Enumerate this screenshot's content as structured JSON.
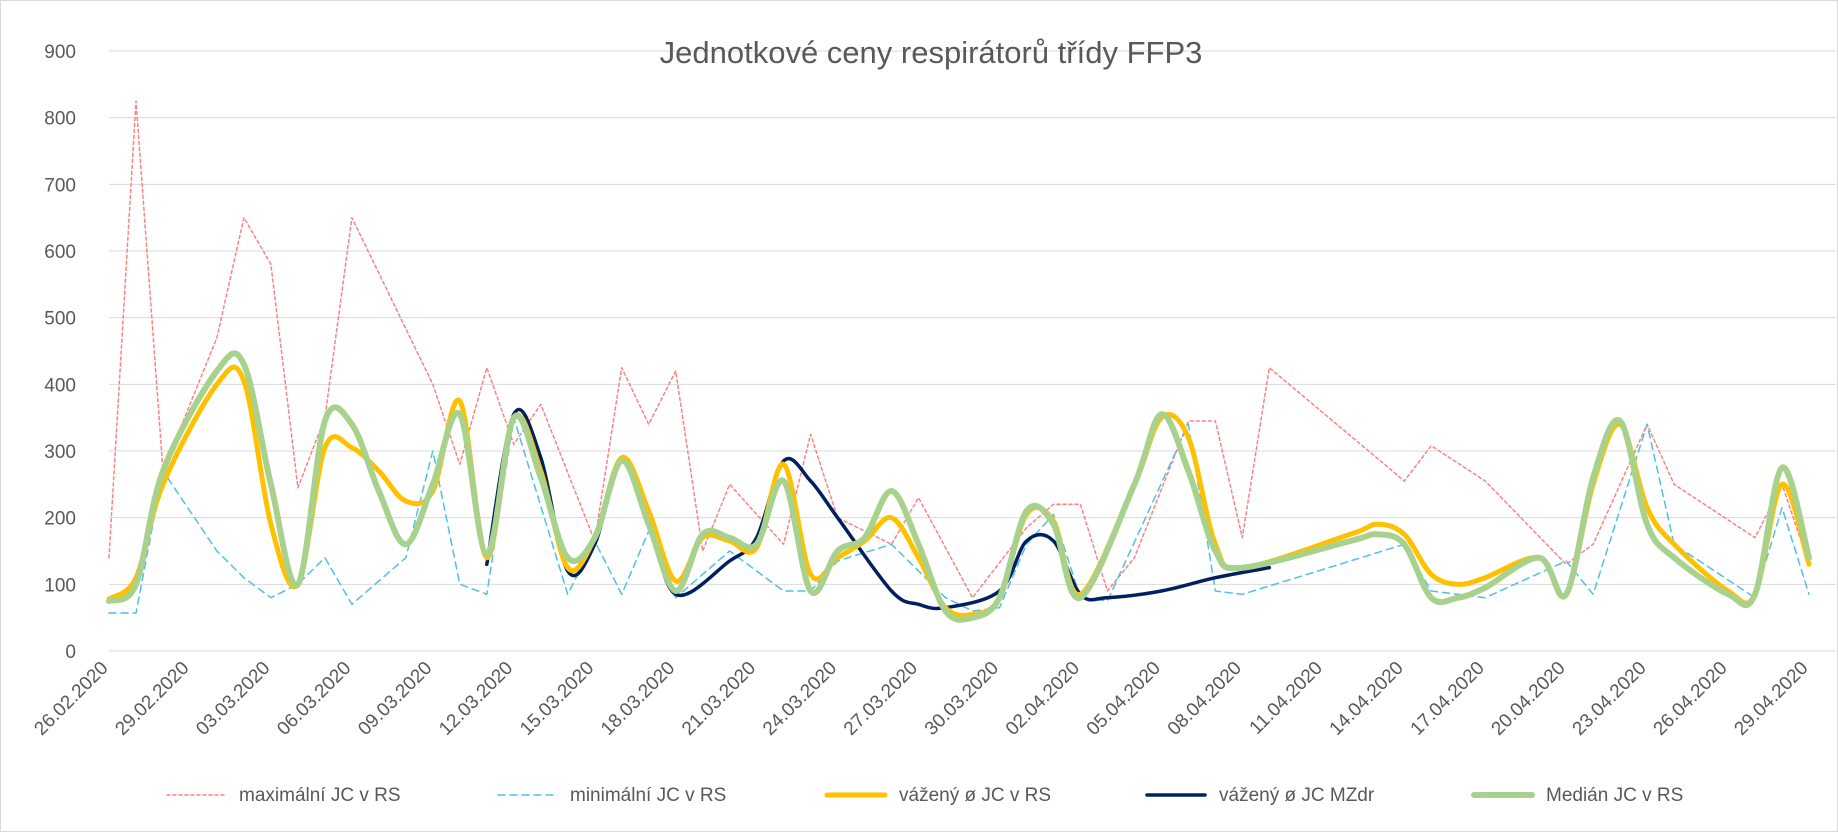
{
  "chart_data": {
    "type": "line",
    "title": "Jednotkové ceny respirátorů třídy FFP3",
    "xlabel": "",
    "ylabel": "",
    "ylim": [
      0,
      900
    ],
    "yticks": [
      0,
      100,
      200,
      300,
      400,
      500,
      600,
      700,
      800,
      900
    ],
    "x_range": [
      "2020-02-26",
      "2020-04-30"
    ],
    "xtick_labels": [
      "26.02.2020",
      "29.02.2020",
      "03.03.2020",
      "06.03.2020",
      "09.03.2020",
      "12.03.2020",
      "15.03.2020",
      "18.03.2020",
      "21.03.2020",
      "24.03.2020",
      "27.03.2020",
      "30.03.2020",
      "02.04.2020",
      "05.04.2020",
      "08.04.2020",
      "11.04.2020",
      "14.04.2020",
      "17.04.2020",
      "20.04.2020",
      "23.04.2020",
      "26.04.2020",
      "29.04.2020"
    ],
    "grid": true,
    "legend_position": "bottom",
    "series": [
      {
        "name": "maximální JC v RS",
        "color": "#ff8080",
        "style": "dotted",
        "smooth": false,
        "points": [
          [
            "2020-02-26",
            140
          ],
          [
            "2020-02-27",
            825
          ],
          [
            "2020-02-28",
            270
          ],
          [
            "2020-03-01",
            470
          ],
          [
            "2020-03-02",
            650
          ],
          [
            "2020-03-03",
            580
          ],
          [
            "2020-03-04",
            245
          ],
          [
            "2020-03-05",
            350
          ],
          [
            "2020-03-06",
            650
          ],
          [
            "2020-03-09",
            400
          ],
          [
            "2020-03-10",
            280
          ],
          [
            "2020-03-11",
            425
          ],
          [
            "2020-03-12",
            310
          ],
          [
            "2020-03-13",
            370
          ],
          [
            "2020-03-15",
            165
          ],
          [
            "2020-03-16",
            425
          ],
          [
            "2020-03-17",
            340
          ],
          [
            "2020-03-18",
            420
          ],
          [
            "2020-03-19",
            150
          ],
          [
            "2020-03-20",
            250
          ],
          [
            "2020-03-22",
            160
          ],
          [
            "2020-03-23",
            325
          ],
          [
            "2020-03-24",
            200
          ],
          [
            "2020-03-26",
            160
          ],
          [
            "2020-03-27",
            230
          ],
          [
            "2020-03-29",
            80
          ],
          [
            "2020-03-31",
            185
          ],
          [
            "2020-04-01",
            220
          ],
          [
            "2020-04-02",
            220
          ],
          [
            "2020-04-03",
            90
          ],
          [
            "2020-04-04",
            140
          ],
          [
            "2020-04-06",
            345
          ],
          [
            "2020-04-07",
            345
          ],
          [
            "2020-04-08",
            170
          ],
          [
            "2020-04-09",
            425
          ],
          [
            "2020-04-14",
            255
          ],
          [
            "2020-04-15",
            308
          ],
          [
            "2020-04-17",
            255
          ],
          [
            "2020-04-20",
            130
          ],
          [
            "2020-04-21",
            160
          ],
          [
            "2020-04-23",
            340
          ],
          [
            "2020-04-24",
            250
          ],
          [
            "2020-04-27",
            170
          ],
          [
            "2020-04-28",
            250
          ],
          [
            "2020-04-29",
            130
          ]
        ]
      },
      {
        "name": "minimální JC v RS",
        "color": "#4fc0e8",
        "style": "dashed",
        "smooth": false,
        "points": [
          [
            "2020-02-26",
            57
          ],
          [
            "2020-02-27",
            57
          ],
          [
            "2020-02-28",
            270
          ],
          [
            "2020-03-01",
            150
          ],
          [
            "2020-03-02",
            110
          ],
          [
            "2020-03-03",
            80
          ],
          [
            "2020-03-04",
            100
          ],
          [
            "2020-03-05",
            140
          ],
          [
            "2020-03-06",
            70
          ],
          [
            "2020-03-08",
            140
          ],
          [
            "2020-03-09",
            300
          ],
          [
            "2020-03-10",
            100
          ],
          [
            "2020-03-11",
            85
          ],
          [
            "2020-03-12",
            350
          ],
          [
            "2020-03-14",
            85
          ],
          [
            "2020-03-15",
            165
          ],
          [
            "2020-03-16",
            85
          ],
          [
            "2020-03-17",
            180
          ],
          [
            "2020-03-18",
            80
          ],
          [
            "2020-03-20",
            150
          ],
          [
            "2020-03-22",
            90
          ],
          [
            "2020-03-23",
            90
          ],
          [
            "2020-03-24",
            135
          ],
          [
            "2020-03-26",
            160
          ],
          [
            "2020-03-28",
            80
          ],
          [
            "2020-03-29",
            60
          ],
          [
            "2020-03-30",
            65
          ],
          [
            "2020-03-31",
            160
          ],
          [
            "2020-04-01",
            205
          ],
          [
            "2020-04-02",
            80
          ],
          [
            "2020-04-03",
            75
          ],
          [
            "2020-04-06",
            340
          ],
          [
            "2020-04-07",
            90
          ],
          [
            "2020-04-08",
            85
          ],
          [
            "2020-04-10",
            110
          ],
          [
            "2020-04-14",
            160
          ],
          [
            "2020-04-15",
            90
          ],
          [
            "2020-04-17",
            80
          ],
          [
            "2020-04-20",
            135
          ],
          [
            "2020-04-21",
            85
          ],
          [
            "2020-04-23",
            340
          ],
          [
            "2020-04-24",
            160
          ],
          [
            "2020-04-27",
            80
          ],
          [
            "2020-04-28",
            215
          ],
          [
            "2020-04-29",
            85
          ]
        ]
      },
      {
        "name": "vážený ø JC v RS",
        "color": "#ffc000",
        "style": "solid",
        "smooth": true,
        "points": [
          [
            "2020-02-26",
            78
          ],
          [
            "2020-02-27",
            110
          ],
          [
            "2020-02-28",
            250
          ],
          [
            "2020-03-01",
            400
          ],
          [
            "2020-03-02",
            405
          ],
          [
            "2020-03-03",
            190
          ],
          [
            "2020-03-04",
            100
          ],
          [
            "2020-03-05",
            305
          ],
          [
            "2020-03-06",
            305
          ],
          [
            "2020-03-07",
            270
          ],
          [
            "2020-03-08",
            225
          ],
          [
            "2020-03-09",
            240
          ],
          [
            "2020-03-10",
            375
          ],
          [
            "2020-03-11",
            140
          ],
          [
            "2020-03-12",
            350
          ],
          [
            "2020-03-13",
            270
          ],
          [
            "2020-03-14",
            125
          ],
          [
            "2020-03-15",
            170
          ],
          [
            "2020-03-16",
            290
          ],
          [
            "2020-03-17",
            210
          ],
          [
            "2020-03-18",
            105
          ],
          [
            "2020-03-19",
            170
          ],
          [
            "2020-03-20",
            165
          ],
          [
            "2020-03-21",
            155
          ],
          [
            "2020-03-22",
            280
          ],
          [
            "2020-03-23",
            115
          ],
          [
            "2020-03-24",
            140
          ],
          [
            "2020-03-25",
            165
          ],
          [
            "2020-03-26",
            200
          ],
          [
            "2020-03-27",
            140
          ],
          [
            "2020-03-28",
            65
          ],
          [
            "2020-03-29",
            55
          ],
          [
            "2020-03-30",
            80
          ],
          [
            "2020-03-31",
            205
          ],
          [
            "2020-04-01",
            195
          ],
          [
            "2020-04-02",
            85
          ],
          [
            "2020-04-04",
            250
          ],
          [
            "2020-04-05",
            350
          ],
          [
            "2020-04-06",
            320
          ],
          [
            "2020-04-07",
            160
          ],
          [
            "2020-04-08",
            125
          ],
          [
            "2020-04-12",
            175
          ],
          [
            "2020-04-13",
            190
          ],
          [
            "2020-04-14",
            175
          ],
          [
            "2020-04-15",
            115
          ],
          [
            "2020-04-16",
            100
          ],
          [
            "2020-04-17",
            110
          ],
          [
            "2020-04-19",
            140
          ],
          [
            "2020-04-20",
            85
          ],
          [
            "2020-04-21",
            250
          ],
          [
            "2020-04-22",
            340
          ],
          [
            "2020-04-23",
            215
          ],
          [
            "2020-04-24",
            160
          ],
          [
            "2020-04-26",
            90
          ],
          [
            "2020-04-27",
            85
          ],
          [
            "2020-04-28",
            250
          ],
          [
            "2020-04-29",
            130
          ]
        ]
      },
      {
        "name": "vážený ø JC MZdr",
        "color": "#002060",
        "style": "solid",
        "smooth": true,
        "points": [
          [
            "2020-03-11",
            130
          ],
          [
            "2020-03-12",
            355
          ],
          [
            "2020-03-13",
            290
          ],
          [
            "2020-03-14",
            120
          ],
          [
            "2020-03-15",
            160
          ],
          [
            "2020-03-16",
            290
          ],
          [
            "2020-03-17",
            200
          ],
          [
            "2020-03-18",
            85
          ],
          [
            "2020-03-20",
            135
          ],
          [
            "2020-03-21",
            170
          ],
          [
            "2020-03-22",
            285
          ],
          [
            "2020-03-23",
            255
          ],
          [
            "2020-03-24",
            200
          ],
          [
            "2020-03-26",
            90
          ],
          [
            "2020-03-27",
            70
          ],
          [
            "2020-03-28",
            65
          ],
          [
            "2020-03-30",
            90
          ],
          [
            "2020-03-31",
            165
          ],
          [
            "2020-04-01",
            165
          ],
          [
            "2020-04-02",
            85
          ],
          [
            "2020-04-03",
            80
          ],
          [
            "2020-04-05",
            90
          ],
          [
            "2020-04-07",
            110
          ],
          [
            "2020-04-09",
            125
          ]
        ]
      },
      {
        "name": "Medián JC v RS",
        "color": "#a9d18e",
        "style": "solid",
        "smooth": true,
        "points": [
          [
            "2020-02-26",
            75
          ],
          [
            "2020-02-27",
            100
          ],
          [
            "2020-02-28",
            270
          ],
          [
            "2020-03-01",
            420
          ],
          [
            "2020-03-02",
            430
          ],
          [
            "2020-03-03",
            250
          ],
          [
            "2020-03-04",
            100
          ],
          [
            "2020-03-05",
            345
          ],
          [
            "2020-03-06",
            340
          ],
          [
            "2020-03-07",
            240
          ],
          [
            "2020-03-08",
            160
          ],
          [
            "2020-03-09",
            250
          ],
          [
            "2020-03-10",
            355
          ],
          [
            "2020-03-11",
            145
          ],
          [
            "2020-03-12",
            350
          ],
          [
            "2020-03-13",
            260
          ],
          [
            "2020-03-14",
            140
          ],
          [
            "2020-03-15",
            170
          ],
          [
            "2020-03-16",
            285
          ],
          [
            "2020-03-17",
            190
          ],
          [
            "2020-03-18",
            90
          ],
          [
            "2020-03-19",
            175
          ],
          [
            "2020-03-20",
            170
          ],
          [
            "2020-03-21",
            160
          ],
          [
            "2020-03-22",
            255
          ],
          [
            "2020-03-23",
            90
          ],
          [
            "2020-03-24",
            150
          ],
          [
            "2020-03-25",
            170
          ],
          [
            "2020-03-26",
            240
          ],
          [
            "2020-03-27",
            160
          ],
          [
            "2020-03-28",
            60
          ],
          [
            "2020-03-29",
            50
          ],
          [
            "2020-03-30",
            80
          ],
          [
            "2020-03-31",
            210
          ],
          [
            "2020-04-01",
            190
          ],
          [
            "2020-04-02",
            80
          ],
          [
            "2020-04-04",
            250
          ],
          [
            "2020-04-05",
            355
          ],
          [
            "2020-04-06",
            270
          ],
          [
            "2020-04-07",
            150
          ],
          [
            "2020-04-08",
            125
          ],
          [
            "2020-04-12",
            165
          ],
          [
            "2020-04-13",
            175
          ],
          [
            "2020-04-14",
            160
          ],
          [
            "2020-04-15",
            80
          ],
          [
            "2020-04-16",
            80
          ],
          [
            "2020-04-17",
            95
          ],
          [
            "2020-04-19",
            140
          ],
          [
            "2020-04-20",
            85
          ],
          [
            "2020-04-21",
            260
          ],
          [
            "2020-04-22",
            345
          ],
          [
            "2020-04-23",
            190
          ],
          [
            "2020-04-24",
            140
          ],
          [
            "2020-04-26",
            85
          ],
          [
            "2020-04-27",
            85
          ],
          [
            "2020-04-28",
            275
          ],
          [
            "2020-04-29",
            140
          ]
        ]
      }
    ]
  }
}
